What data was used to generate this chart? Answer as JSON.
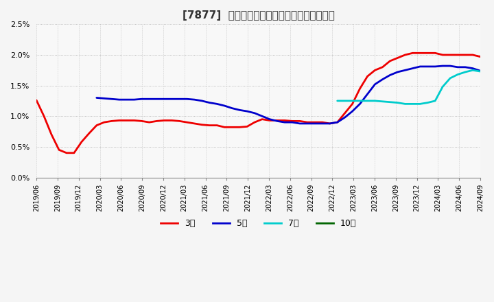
{
  "title": "[7877]  当期純利益マージンの標準偏差の推移",
  "ylim": [
    0.0,
    0.025
  ],
  "yticks": [
    0.0,
    0.005,
    0.01,
    0.015,
    0.02,
    0.025
  ],
  "background_color": "#f5f5f5",
  "plot_bg_color": "#f8f8f8",
  "grid_color": "#cccccc",
  "series": {
    "3年": {
      "color": "#ee0000",
      "y": [
        0.0126,
        0.01,
        0.007,
        0.0045,
        0.004,
        0.004,
        0.0058,
        0.0072,
        0.0085,
        0.009,
        0.0092,
        0.0093,
        0.0093,
        0.0093,
        0.0092,
        0.009,
        0.0092,
        0.0093,
        0.0093,
        0.0092,
        0.009,
        0.0088,
        0.0086,
        0.0085,
        0.0085,
        0.0082,
        0.0082,
        0.0082,
        0.0083,
        0.009,
        0.0095,
        0.0093,
        0.0093,
        0.0093,
        0.0092,
        0.0092,
        0.009,
        0.009,
        0.009,
        0.0088,
        0.009,
        0.0105,
        0.012,
        0.0145,
        0.0165,
        0.0175,
        0.018,
        0.019,
        0.0195,
        0.02,
        0.0203,
        0.0203,
        0.0203,
        0.0203,
        0.02,
        0.02,
        0.02,
        0.02,
        0.02,
        0.0197
      ]
    },
    "5年": {
      "color": "#0000cc",
      "y": [
        null,
        null,
        null,
        null,
        null,
        null,
        null,
        null,
        0.013,
        0.0129,
        0.0128,
        0.0127,
        0.0127,
        0.0127,
        0.0128,
        0.0128,
        0.0128,
        0.0128,
        0.0128,
        0.0128,
        0.0128,
        0.0127,
        0.0125,
        0.0122,
        0.012,
        0.0117,
        0.0113,
        0.011,
        0.0108,
        0.0105,
        0.01,
        0.0095,
        0.0092,
        0.009,
        0.009,
        0.0088,
        0.0088,
        0.0088,
        0.0088,
        0.0088,
        0.009,
        0.0098,
        0.0108,
        0.012,
        0.0136,
        0.0152,
        0.016,
        0.0167,
        0.0172,
        0.0175,
        0.0178,
        0.0181,
        0.0181,
        0.0181,
        0.0182,
        0.0182,
        0.018,
        0.018,
        0.0178,
        0.0174
      ]
    },
    "7年": {
      "color": "#00cccc",
      "y": [
        null,
        null,
        null,
        null,
        null,
        null,
        null,
        null,
        null,
        null,
        null,
        null,
        null,
        null,
        null,
        null,
        null,
        null,
        null,
        null,
        null,
        null,
        null,
        null,
        null,
        null,
        null,
        null,
        null,
        null,
        null,
        null,
        null,
        null,
        null,
        null,
        null,
        null,
        null,
        null,
        0.0125,
        0.0125,
        0.0125,
        0.0125,
        0.0125,
        0.0125,
        0.0124,
        0.0123,
        0.0122,
        0.012,
        0.012,
        0.012,
        0.0122,
        0.0125,
        0.0148,
        0.0162,
        0.0168,
        0.0172,
        0.0175,
        0.0173
      ]
    },
    "10年": {
      "color": "#006400",
      "y": [
        null,
        null,
        null,
        null,
        null,
        null,
        null,
        null,
        null,
        null,
        null,
        null,
        null,
        null,
        null,
        null,
        null,
        null,
        null,
        null,
        null,
        null,
        null,
        null,
        null,
        null,
        null,
        null,
        null,
        null,
        null,
        null,
        null,
        null,
        null,
        null,
        null,
        null,
        null,
        null,
        null,
        null,
        null,
        null,
        null,
        null,
        null,
        null,
        null,
        null,
        null,
        null,
        null,
        null,
        null,
        null,
        null,
        null,
        null,
        null
      ]
    }
  },
  "x_labels": [
    "2019/06",
    "2019/09",
    "2019/12",
    "2020/03",
    "2020/06",
    "2020/09",
    "2020/12",
    "2021/03",
    "2021/06",
    "2021/09",
    "2021/12",
    "2022/03",
    "2022/06",
    "2022/09",
    "2022/12",
    "2023/03",
    "2023/06",
    "2023/09",
    "2023/12",
    "2024/03",
    "2024/06",
    "2024/09"
  ],
  "legend_entries": [
    "3年",
    "5年",
    "7年",
    "10年"
  ],
  "legend_colors": [
    "#ee0000",
    "#0000cc",
    "#00cccc",
    "#006400"
  ]
}
